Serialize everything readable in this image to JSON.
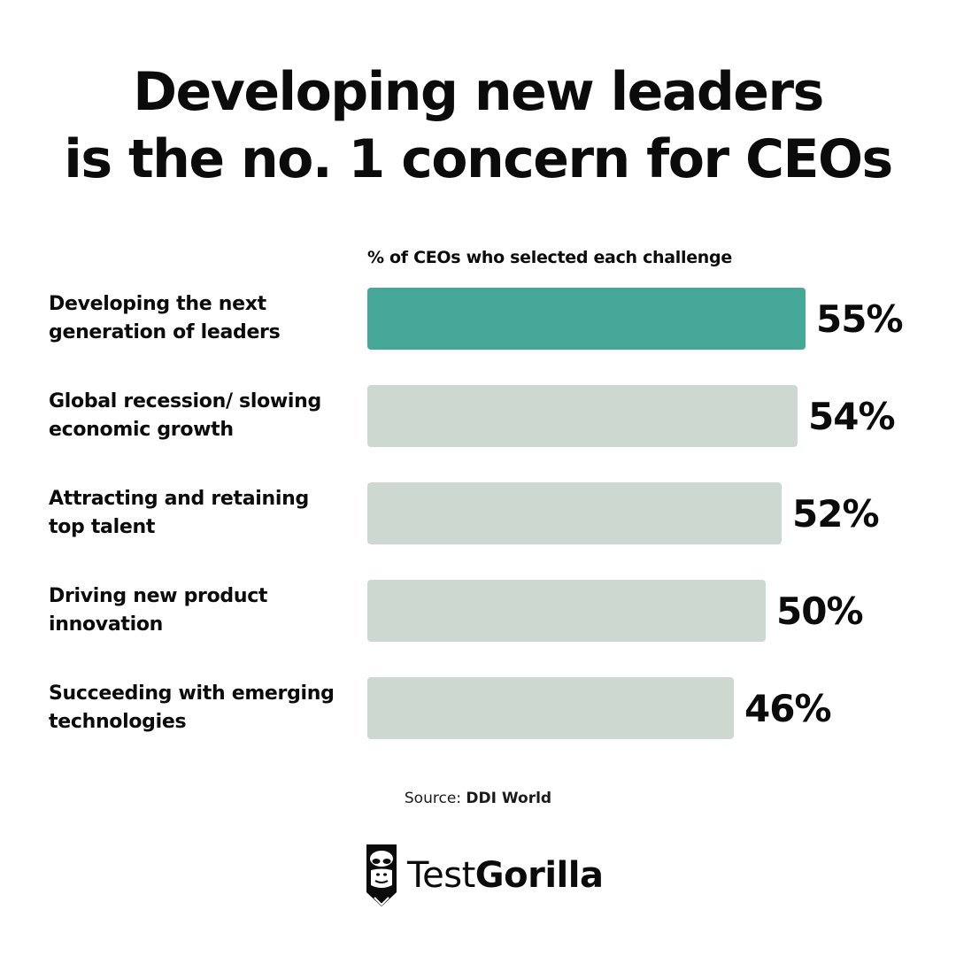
{
  "title": {
    "line1": "Developing new leaders",
    "line2": "is the no. 1 concern for CEOs"
  },
  "chart_data": {
    "type": "bar",
    "orientation": "horizontal",
    "subtitle": "% of CEOs who selected each challenge",
    "categories": [
      [
        "Developing the next",
        "generation of leaders"
      ],
      [
        "Global recession/ slowing",
        "economic growth"
      ],
      [
        "Attracting and retaining",
        "top talent"
      ],
      [
        "Driving new product",
        "innovation"
      ],
      [
        "Succeeding with emerging",
        "technologies"
      ]
    ],
    "values": [
      55,
      54,
      52,
      50,
      46
    ],
    "value_labels": [
      "55%",
      "54%",
      "52%",
      "50%",
      "46%"
    ],
    "highlight_index": 0,
    "unit": "%"
  },
  "colors": {
    "highlight": "#46a898",
    "bar": "#cdd9d0",
    "text": "#0b0b0b"
  },
  "source": {
    "prefix": "Source:",
    "name": "DDI World"
  },
  "brand": {
    "light": "Test",
    "bold": "Gorilla",
    "icon": "gorilla-pencil-icon"
  }
}
